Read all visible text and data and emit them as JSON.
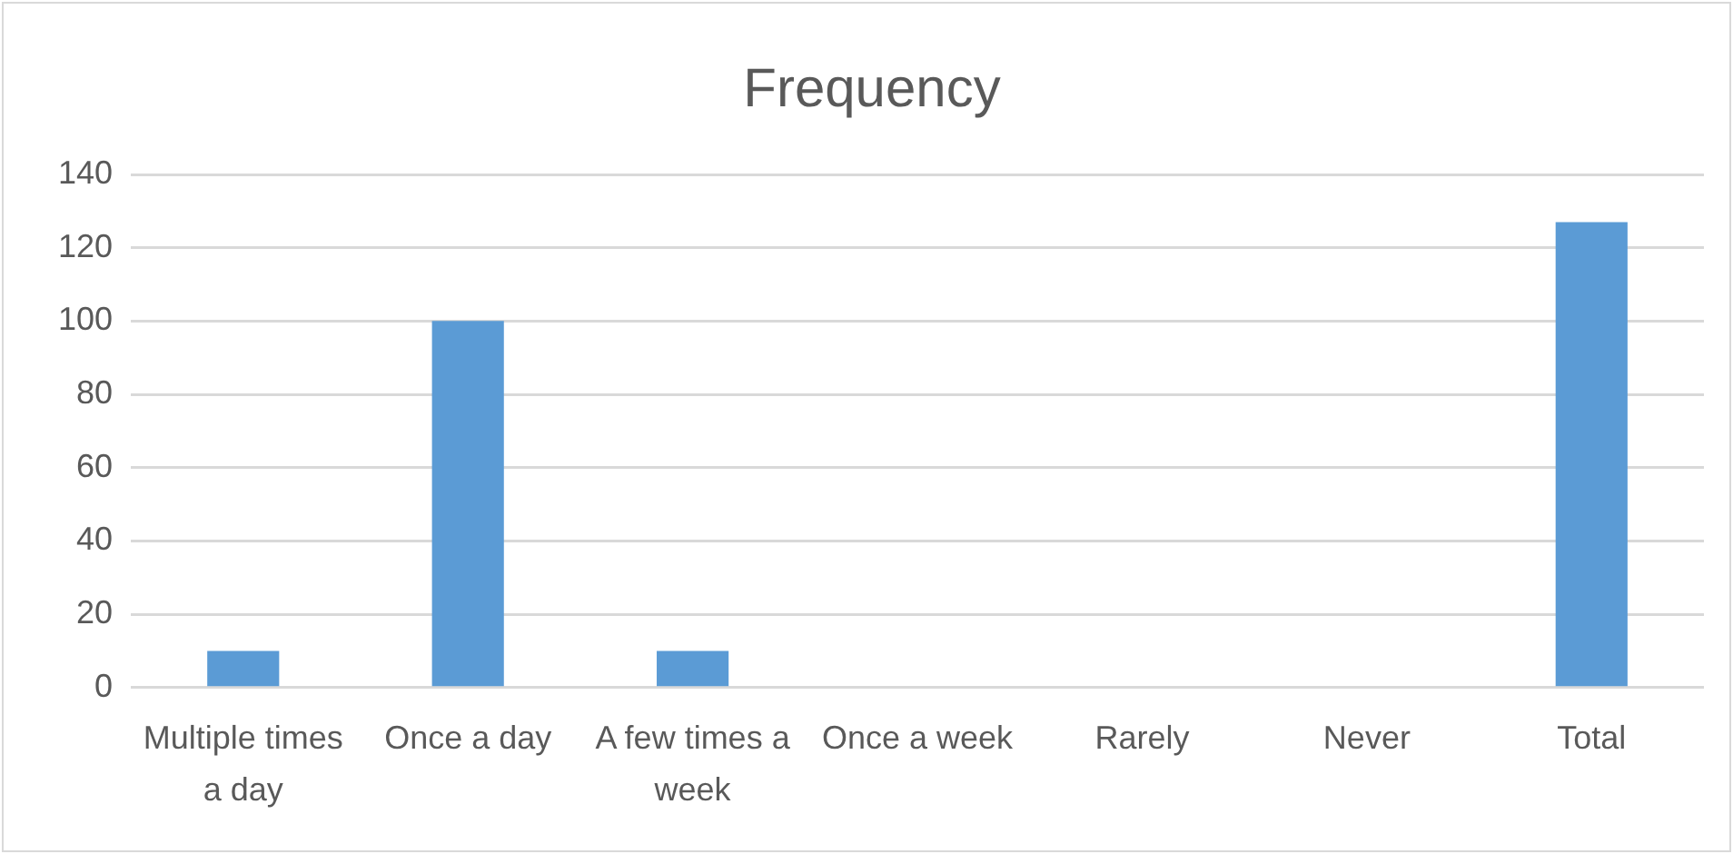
{
  "chart_data": {
    "type": "bar",
    "title": "Frequency",
    "categories": [
      "Multiple times a day",
      "Once a day",
      "A few times a week",
      "Once a week",
      "Rarely",
      "Never",
      "Total"
    ],
    "values": [
      10,
      100,
      10,
      0,
      0,
      0,
      127
    ],
    "color": "#5b9bd5",
    "ylim": [
      0,
      140
    ],
    "yticks": [
      0,
      20,
      40,
      60,
      80,
      100,
      120,
      140
    ],
    "grid": "y"
  }
}
